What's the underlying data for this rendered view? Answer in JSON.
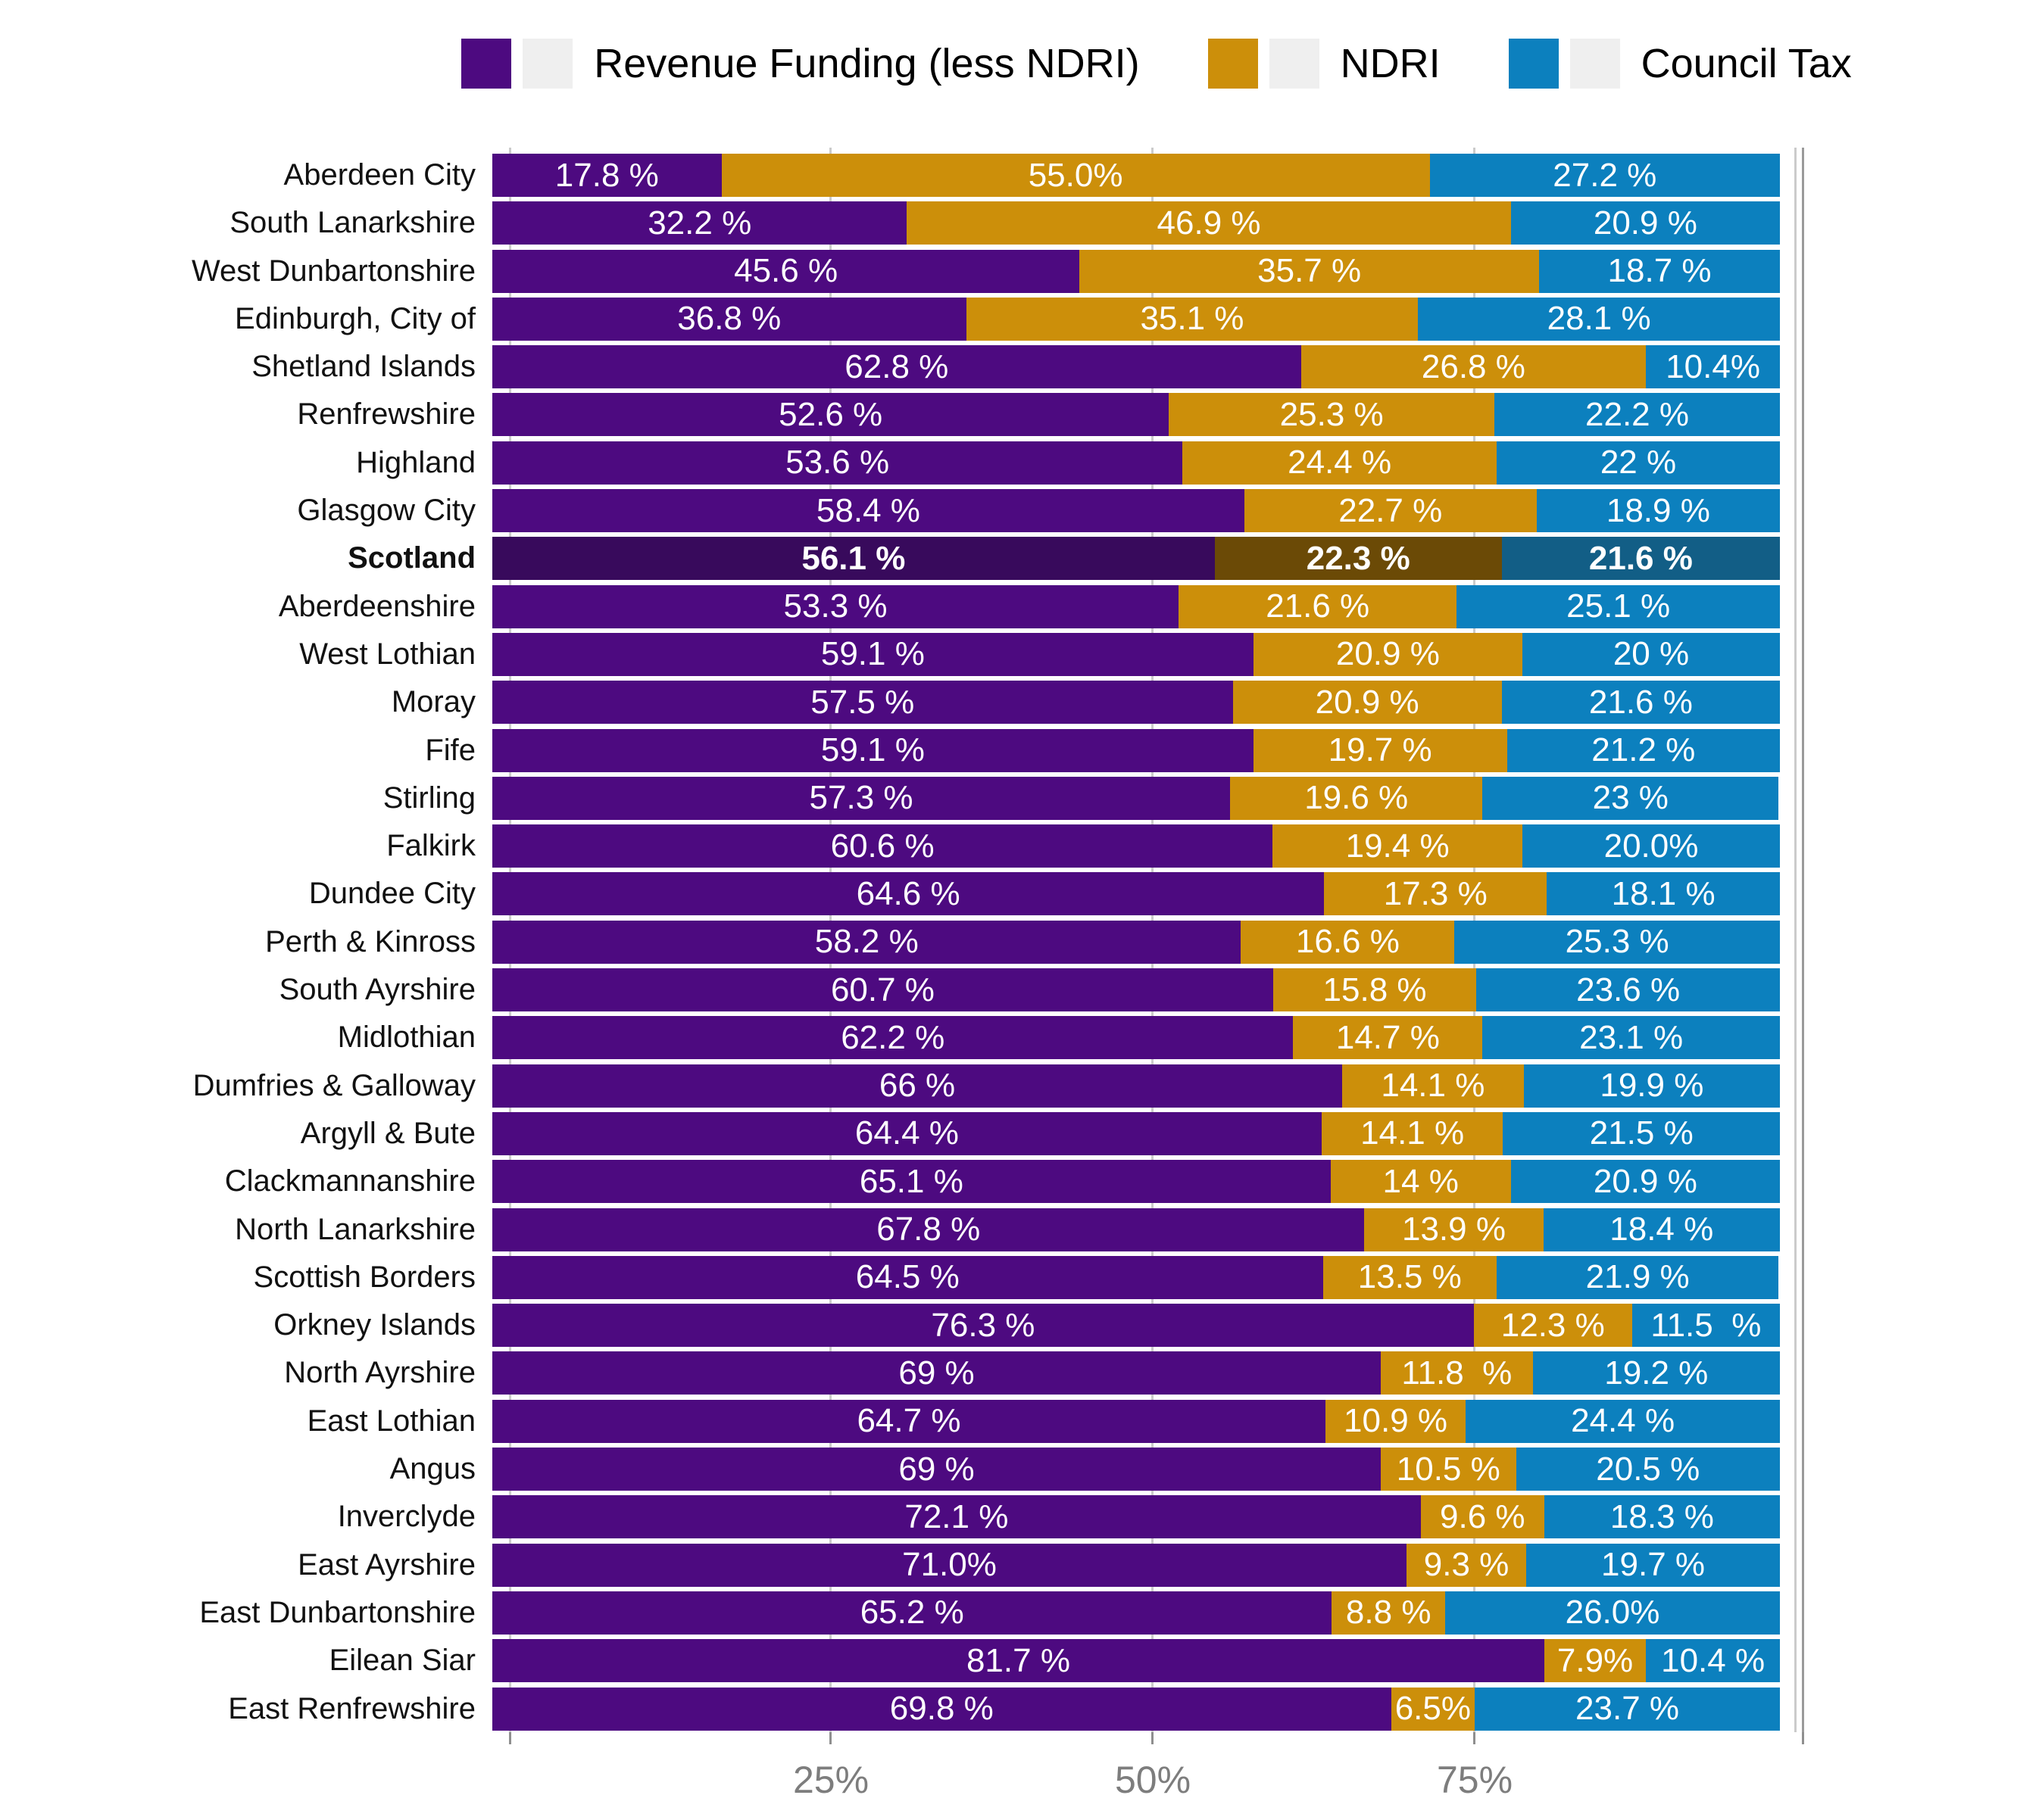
{
  "legend": {
    "items": [
      {
        "label": "Revenue Funding (less NDRI)",
        "color": "#4d0a80"
      },
      {
        "label": "NDRI",
        "color": "#cc8f0a"
      },
      {
        "label": "Council Tax",
        "color": "#0c80be"
      }
    ]
  },
  "chart_data": {
    "type": "bar",
    "subtype": "horizontal-stacked-100pct",
    "title": "",
    "xlabel": "",
    "ylabel": "",
    "legend_position": "top-center",
    "grid": "vertical-gridlines-at-0-25-50-75-100",
    "xlim": [
      0,
      100.5
    ],
    "series": [
      {
        "name": "Revenue Funding (less NDRI)",
        "color": "#4d0a80",
        "emphasis_color": "#380a5c"
      },
      {
        "name": "NDRI",
        "color": "#cc8f0a",
        "emphasis_color": "#6b4a06"
      },
      {
        "name": "Council Tax",
        "color": "#0c80be",
        "emphasis_color": "#125e86"
      }
    ],
    "x_axis": {
      "ticks": [
        {
          "pct": 25,
          "label": "25%"
        },
        {
          "pct": 50,
          "label": "50%"
        },
        {
          "pct": 75,
          "label": "75%"
        }
      ],
      "gridlines_pct": [
        0,
        25,
        50,
        75,
        100
      ]
    },
    "rows": [
      {
        "name": "Aberdeen City",
        "values": [
          17.8,
          55.0,
          27.2
        ],
        "labels": [
          "17.8 %",
          "55.0%",
          "27.2 %"
        ],
        "emphasis": false
      },
      {
        "name": "South Lanarkshire",
        "values": [
          32.2,
          46.9,
          20.9
        ],
        "labels": [
          "32.2 %",
          "46.9 %",
          "20.9 %"
        ],
        "emphasis": false
      },
      {
        "name": "West Dunbartonshire",
        "values": [
          45.6,
          35.7,
          18.7
        ],
        "labels": [
          "45.6 %",
          "35.7 %",
          "18.7 %"
        ],
        "emphasis": false
      },
      {
        "name": "Edinburgh, City of",
        "values": [
          36.8,
          35.1,
          28.1
        ],
        "labels": [
          "36.8 %",
          "35.1 %",
          "28.1 %"
        ],
        "emphasis": false
      },
      {
        "name": "Shetland Islands",
        "values": [
          62.8,
          26.8,
          10.4
        ],
        "labels": [
          "62.8 %",
          "26.8 %",
          "10.4%"
        ],
        "emphasis": false
      },
      {
        "name": "Renfrewshire",
        "values": [
          52.6,
          25.3,
          22.2
        ],
        "labels": [
          "52.6 %",
          "25.3 %",
          "22.2 %"
        ],
        "emphasis": false
      },
      {
        "name": "Highland",
        "values": [
          53.6,
          24.4,
          22.0
        ],
        "labels": [
          "53.6 %",
          "24.4 %",
          "22 %"
        ],
        "emphasis": false
      },
      {
        "name": "Glasgow City",
        "values": [
          58.4,
          22.7,
          18.9
        ],
        "labels": [
          "58.4 %",
          "22.7 %",
          "18.9 %"
        ],
        "emphasis": false
      },
      {
        "name": "Scotland",
        "values": [
          56.1,
          22.3,
          21.6
        ],
        "labels": [
          "56.1 %",
          "22.3 %",
          "21.6 %"
        ],
        "emphasis": true
      },
      {
        "name": "Aberdeenshire",
        "values": [
          53.3,
          21.6,
          25.1
        ],
        "labels": [
          "53.3 %",
          "21.6 %",
          "25.1 %"
        ],
        "emphasis": false
      },
      {
        "name": "West Lothian",
        "values": [
          59.1,
          20.9,
          20.0
        ],
        "labels": [
          "59.1 %",
          "20.9 %",
          "20 %"
        ],
        "emphasis": false
      },
      {
        "name": "Moray",
        "values": [
          57.5,
          20.9,
          21.6
        ],
        "labels": [
          "57.5 %",
          "20.9 %",
          "21.6 %"
        ],
        "emphasis": false
      },
      {
        "name": "Fife",
        "values": [
          59.1,
          19.7,
          21.2
        ],
        "labels": [
          "59.1 %",
          "19.7 %",
          "21.2 %"
        ],
        "emphasis": false
      },
      {
        "name": "Stirling",
        "values": [
          57.3,
          19.6,
          23.0
        ],
        "labels": [
          "57.3 %",
          "19.6 %",
          "23 %"
        ],
        "emphasis": false
      },
      {
        "name": "Falkirk",
        "values": [
          60.6,
          19.4,
          20.0
        ],
        "labels": [
          "60.6 %",
          "19.4 %",
          "20.0%"
        ],
        "emphasis": false
      },
      {
        "name": "Dundee City",
        "values": [
          64.6,
          17.3,
          18.1
        ],
        "labels": [
          "64.6 %",
          "17.3 %",
          "18.1 %"
        ],
        "emphasis": false
      },
      {
        "name": "Perth & Kinross",
        "values": [
          58.2,
          16.6,
          25.3
        ],
        "labels": [
          "58.2 %",
          "16.6 %",
          "25.3 %"
        ],
        "emphasis": false
      },
      {
        "name": "South Ayrshire",
        "values": [
          60.7,
          15.8,
          23.6
        ],
        "labels": [
          "60.7 %",
          "15.8 %",
          "23.6 %"
        ],
        "emphasis": false
      },
      {
        "name": "Midlothian",
        "values": [
          62.2,
          14.7,
          23.1
        ],
        "labels": [
          "62.2 %",
          "14.7 %",
          "23.1 %"
        ],
        "emphasis": false
      },
      {
        "name": "Dumfries & Galloway",
        "values": [
          66.0,
          14.1,
          19.9
        ],
        "labels": [
          "66 %",
          "14.1 %",
          "19.9 %"
        ],
        "emphasis": false
      },
      {
        "name": "Argyll & Bute",
        "values": [
          64.4,
          14.1,
          21.5
        ],
        "labels": [
          "64.4 %",
          "14.1 %",
          "21.5 %"
        ],
        "emphasis": false
      },
      {
        "name": "Clackmannanshire",
        "values": [
          65.1,
          14.0,
          20.9
        ],
        "labels": [
          "65.1 %",
          "14 %",
          "20.9 %"
        ],
        "emphasis": false
      },
      {
        "name": "North Lanarkshire",
        "values": [
          67.8,
          13.9,
          18.4
        ],
        "labels": [
          "67.8 %",
          "13.9 %",
          "18.4 %"
        ],
        "emphasis": false
      },
      {
        "name": "Scottish Borders",
        "values": [
          64.5,
          13.5,
          21.9
        ],
        "labels": [
          "64.5 %",
          "13.5 %",
          "21.9 %"
        ],
        "emphasis": false
      },
      {
        "name": "Orkney Islands",
        "values": [
          76.3,
          12.3,
          11.5
        ],
        "labels": [
          "76.3 %",
          "12.3 %",
          "11.5  %"
        ],
        "emphasis": false
      },
      {
        "name": "North Ayrshire",
        "values": [
          69.0,
          11.8,
          19.2
        ],
        "labels": [
          "69 %",
          "11.8  %",
          "19.2 %"
        ],
        "emphasis": false
      },
      {
        "name": "East Lothian",
        "values": [
          64.7,
          10.9,
          24.4
        ],
        "labels": [
          "64.7 %",
          "10.9 %",
          "24.4 %"
        ],
        "emphasis": false
      },
      {
        "name": "Angus",
        "values": [
          69.0,
          10.5,
          20.5
        ],
        "labels": [
          "69 %",
          "10.5 %",
          "20.5 %"
        ],
        "emphasis": false
      },
      {
        "name": "Inverclyde",
        "values": [
          72.1,
          9.6,
          18.3
        ],
        "labels": [
          "72.1 %",
          "9.6 %",
          "18.3 %"
        ],
        "emphasis": false
      },
      {
        "name": "East Ayrshire",
        "values": [
          71.0,
          9.3,
          19.7
        ],
        "labels": [
          "71.0%",
          "9.3 %",
          "19.7 %"
        ],
        "emphasis": false
      },
      {
        "name": "East Dunbartonshire",
        "values": [
          65.2,
          8.8,
          26.0
        ],
        "labels": [
          "65.2 %",
          "8.8 %",
          "26.0%"
        ],
        "emphasis": false
      },
      {
        "name": "Eilean Siar",
        "values": [
          81.7,
          7.9,
          10.4
        ],
        "labels": [
          "81.7 %",
          "7.9%",
          "10.4 %"
        ],
        "emphasis": false
      },
      {
        "name": "East Renfrewshire",
        "values": [
          69.8,
          6.5,
          23.7
        ],
        "labels": [
          "69.8 %",
          "6.5%",
          "23.7 %"
        ],
        "emphasis": false
      }
    ]
  },
  "colors": {
    "revenue_funding": "#4d0a80",
    "ndri": "#cc8f0a",
    "council_tax": "#0c80be",
    "scotland_revenue_funding": "#380a5c",
    "scotland_ndri": "#6b4a06",
    "scotland_council_tax": "#125e86",
    "gridline": "#cbcbcb",
    "axis_tick": "#8f8f8f",
    "axis_text": "#7d7d7d",
    "legend_key_background": "#efefef"
  }
}
